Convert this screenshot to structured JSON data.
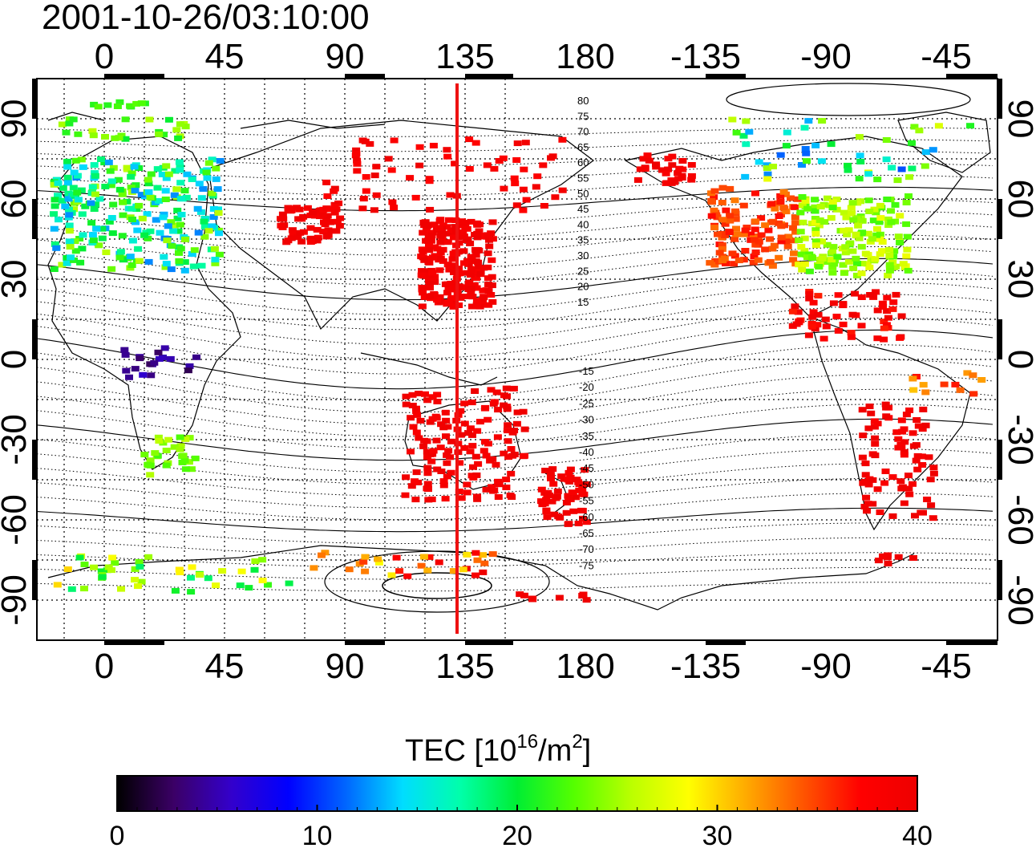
{
  "timestamp": "2001-10-26/03:10:00",
  "map": {
    "top_lon_labels": [
      "0",
      "45",
      "90",
      "135",
      "180",
      "-135",
      "-90",
      "-45"
    ],
    "bottom_lon_labels": [
      "0",
      "45",
      "90",
      "135",
      "180",
      "-135",
      "-90",
      "-45"
    ],
    "left_lat_labels": [
      "90",
      "60",
      "30",
      "0",
      "-30",
      "-60",
      "-90"
    ],
    "right_lat_labels": [
      "90",
      "60",
      "30",
      "0",
      "-30",
      "-60",
      "-90"
    ],
    "contour_labels_north": [
      "80",
      "75",
      "70",
      "65",
      "60",
      "55",
      "50",
      "45",
      "40",
      "35",
      "30",
      "25",
      "20",
      "15"
    ],
    "contour_labels_south": [
      "-15",
      "-20",
      "-25",
      "-30",
      "-35",
      "-40",
      "-45",
      "-50",
      "-55",
      "-60",
      "-65",
      "-70",
      "-75"
    ],
    "marker_line_lon": 135,
    "marker_line_color": "#ee1111"
  },
  "colorbar": {
    "title_main": "TEC  [10",
    "title_sup1": "16",
    "title_mid": "/m",
    "title_sup2": "2",
    "title_end": "]",
    "tick_labels": [
      "0",
      "10",
      "20",
      "30",
      "40"
    ],
    "colormap": [
      "#000000",
      "#3b0066",
      "#3300cc",
      "#0000ff",
      "#0066ff",
      "#00ddff",
      "#00ffaa",
      "#00ee33",
      "#55ff00",
      "#bbff00",
      "#ffff00",
      "#ffaa00",
      "#ff5500",
      "#ff0000",
      "#ee0000"
    ]
  }
}
